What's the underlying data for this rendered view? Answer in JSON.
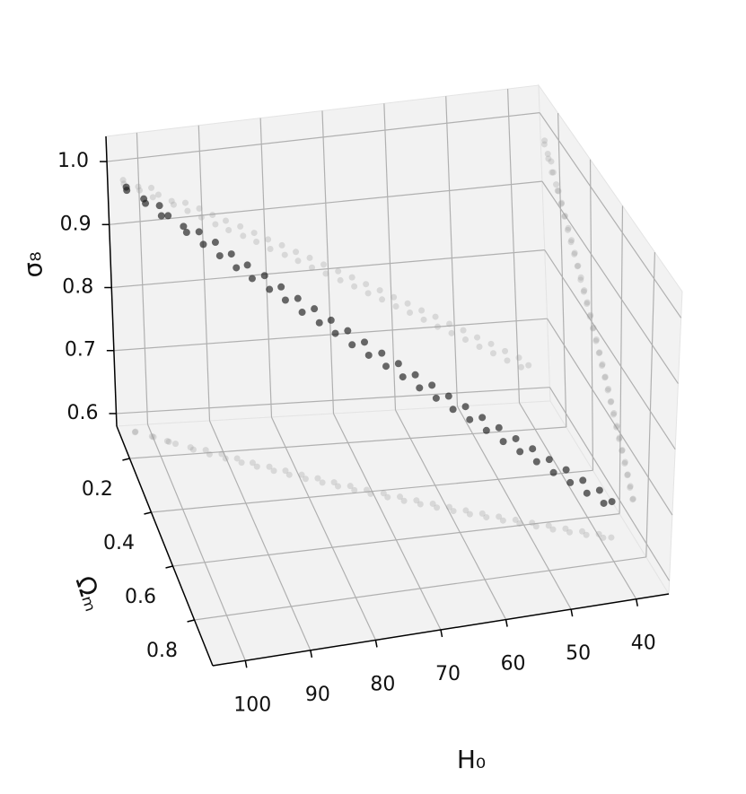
{
  "chart_data": {
    "type": "scatter3d",
    "xlabel": "H₀",
    "ylabel": "Ωₘ",
    "zlabel": "σ₈",
    "color": "#1a1a1a",
    "shadow_color": "#9a9a9a",
    "pane_color": "#f2f2f2",
    "grid": true,
    "xlim": [
      35,
      105
    ],
    "ylim": [
      0.08,
      0.97
    ],
    "zlim": [
      0.58,
      1.04
    ],
    "xticks": [
      40,
      50,
      60,
      70,
      80,
      90,
      100
    ],
    "yticks": [
      0.2,
      0.4,
      0.6,
      0.8
    ],
    "zticks": [
      0.6,
      0.7,
      0.8,
      0.9,
      {
        "value": 1.0,
        "label": "1.0"
      }
    ],
    "x": [
      102.4,
      102.5,
      100.1,
      99.9,
      98.0,
      97.8,
      96.9,
      94.8,
      94.5,
      92.6,
      92.3,
      90.4,
      90.1,
      88.3,
      87.9,
      86.2,
      85.8,
      83.9,
      83.5,
      81.7,
      81.4,
      79.5,
      79.2,
      77.3,
      76.9,
      75.1,
      74.8,
      72.9,
      72.6,
      70.7,
      70.4,
      68.4,
      68.1,
      66.2,
      65.9,
      64.0,
      63.7,
      61.8,
      61.5,
      59.6,
      59.3,
      57.4,
      57.1,
      55.2,
      54.9,
      53.0,
      52.7,
      50.8,
      50.5,
      48.6,
      48.3,
      46.4,
      46.1,
      44.2,
      43.9,
      42.0,
      41.7,
      39.8,
      39.5,
      38.3
    ],
    "y": [
      0.104,
      0.106,
      0.125,
      0.128,
      0.146,
      0.149,
      0.158,
      0.175,
      0.184,
      0.189,
      0.206,
      0.208,
      0.226,
      0.229,
      0.246,
      0.25,
      0.266,
      0.27,
      0.287,
      0.29,
      0.307,
      0.311,
      0.328,
      0.33,
      0.348,
      0.351,
      0.368,
      0.371,
      0.389,
      0.392,
      0.409,
      0.412,
      0.429,
      0.432,
      0.45,
      0.453,
      0.47,
      0.473,
      0.49,
      0.493,
      0.511,
      0.514,
      0.531,
      0.534,
      0.551,
      0.554,
      0.572,
      0.575,
      0.592,
      0.595,
      0.612,
      0.615,
      0.633,
      0.636,
      0.653,
      0.656,
      0.673,
      0.676,
      0.694,
      0.697
    ],
    "z": [
      0.962,
      0.968,
      0.955,
      0.949,
      0.951,
      0.936,
      0.939,
      0.927,
      0.921,
      0.922,
      0.909,
      0.911,
      0.897,
      0.899,
      0.884,
      0.888,
      0.873,
      0.877,
      0.862,
      0.865,
      0.851,
      0.853,
      0.838,
      0.842,
      0.827,
      0.83,
      0.816,
      0.819,
      0.804,
      0.807,
      0.793,
      0.795,
      0.781,
      0.784,
      0.77,
      0.772,
      0.758,
      0.761,
      0.747,
      0.749,
      0.735,
      0.738,
      0.724,
      0.726,
      0.712,
      0.715,
      0.7,
      0.703,
      0.689,
      0.692,
      0.678,
      0.68,
      0.666,
      0.669,
      0.655,
      0.657,
      0.643,
      0.646,
      0.632,
      0.634
    ]
  }
}
